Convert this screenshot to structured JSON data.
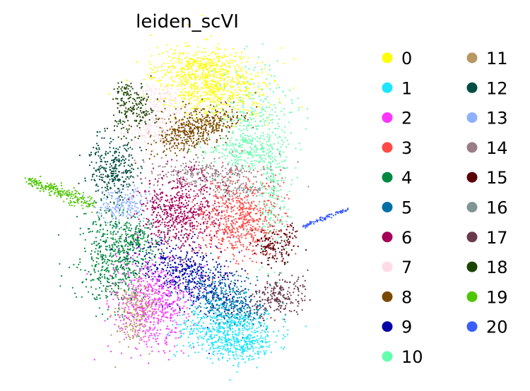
{
  "chart_data": {
    "type": "scatter",
    "title": "leiden_scVI",
    "xlabel": "",
    "ylabel": "",
    "grid": false,
    "legend_position": "right",
    "legend_columns": 2,
    "categories": [
      "0",
      "1",
      "2",
      "3",
      "4",
      "5",
      "6",
      "7",
      "8",
      "9",
      "10",
      "11",
      "12",
      "13",
      "14",
      "15",
      "16",
      "17",
      "18",
      "19",
      "20"
    ],
    "colors": [
      "#ffff00",
      "#1ce6ff",
      "#ff34ff",
      "#ff4a46",
      "#008941",
      "#006fa6",
      "#a30059",
      "#ffdbe5",
      "#7a4900",
      "#0000a6",
      "#63ffac",
      "#b79762",
      "#004d43",
      "#8fb0ff",
      "#997d87",
      "#5a0007",
      "#809693",
      "#6a3a4c",
      "#1b4400",
      "#4fc601",
      "#3b5dff"
    ]
  }
}
